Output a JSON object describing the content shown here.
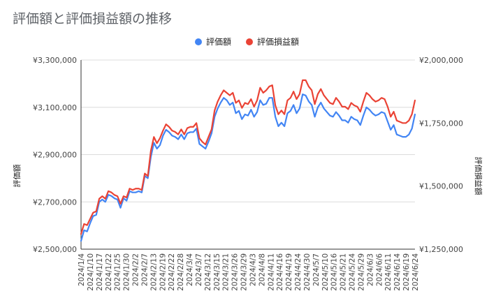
{
  "chart_data": {
    "type": "line",
    "title": "評価額と評価損益額の推移",
    "ylabel_left": "評価額",
    "ylabel_right": "評価損益額",
    "ylim_left": [
      2500000,
      3300000
    ],
    "ylim_right": [
      1250000,
      2000000
    ],
    "yticks_left": [
      "¥2,500,000",
      "¥2,700,000",
      "¥2,900,000",
      "¥3,100,000",
      "¥3,300,000"
    ],
    "yticks_right": [
      "¥1,250,000",
      "¥1,500,000",
      "¥1,750,000",
      "¥2,000,000"
    ],
    "x_tick_labels": [
      "2024/1/4",
      "2024/1/10",
      "2024/1/17",
      "2024/1/22",
      "2024/1/25",
      "2024/1/30",
      "2024/2/2",
      "2024/2/7",
      "2024/2/13",
      "2024/2/19",
      "2024/2/22",
      "2024/2/28",
      "2024/3/4",
      "2024/3/7",
      "2024/3/12",
      "2024/3/15",
      "2024/3/21",
      "2024/3/26",
      "2024/3/29",
      "2024/4/3",
      "2024/4/8",
      "2024/4/11",
      "2024/4/16",
      "2024/4/19",
      "2024/4/24",
      "2024/4/30",
      "2024/5/7",
      "2024/5/10",
      "2024/5/16",
      "2024/5/21",
      "2024/5/24",
      "2024/5/29",
      "2024/6/3",
      "2024/6/6",
      "2024/6/11",
      "2024/6/14",
      "2024/6/19",
      "2024/6/24"
    ],
    "legend_position": "top-center",
    "grid": true,
    "series": [
      {
        "name": "評価額",
        "axis": "left",
        "color": "#4285f4",
        "values": [
          2535000,
          2580000,
          2575000,
          2610000,
          2640000,
          2645000,
          2700000,
          2710000,
          2700000,
          2730000,
          2725000,
          2715000,
          2710000,
          2675000,
          2715000,
          2705000,
          2745000,
          2740000,
          2740000,
          2745000,
          2740000,
          2810000,
          2800000,
          2890000,
          2950000,
          2925000,
          2940000,
          2980000,
          3005000,
          2995000,
          2980000,
          2975000,
          2965000,
          2985000,
          2965000,
          2990000,
          2995000,
          2995000,
          3010000,
          2945000,
          2935000,
          2925000,
          2955000,
          2990000,
          3060000,
          3095000,
          3120000,
          3140000,
          3130000,
          3110000,
          3120000,
          3075000,
          3085000,
          3050000,
          3070000,
          3065000,
          3090000,
          3060000,
          3080000,
          3130000,
          3110000,
          3115000,
          3140000,
          3140000,
          3060000,
          3020000,
          3035000,
          3020000,
          3075000,
          3085000,
          3110000,
          3075000,
          3095000,
          3155000,
          3150000,
          3125000,
          3110000,
          3060000,
          3100000,
          3120000,
          3095000,
          3080000,
          3065000,
          3060000,
          3080000,
          3065000,
          3045000,
          3045000,
          3035000,
          3060000,
          3050000,
          3045000,
          3025000,
          3065000,
          3100000,
          3090000,
          3075000,
          3065000,
          3070000,
          3080000,
          3075000,
          3040000,
          3005000,
          3025000,
          2985000,
          2980000,
          2975000,
          2975000,
          2985000,
          3010000,
          3070000
        ]
      },
      {
        "name": "評価損益額",
        "axis": "right",
        "color": "#ea4335",
        "values": [
          1310000,
          1350000,
          1345000,
          1370000,
          1395000,
          1400000,
          1450000,
          1460000,
          1450000,
          1480000,
          1475000,
          1465000,
          1460000,
          1430000,
          1460000,
          1455000,
          1490000,
          1485000,
          1490000,
          1490000,
          1485000,
          1550000,
          1540000,
          1640000,
          1695000,
          1670000,
          1690000,
          1720000,
          1745000,
          1735000,
          1720000,
          1715000,
          1705000,
          1725000,
          1705000,
          1730000,
          1735000,
          1735000,
          1750000,
          1690000,
          1675000,
          1665000,
          1695000,
          1725000,
          1800000,
          1835000,
          1860000,
          1880000,
          1870000,
          1860000,
          1870000,
          1830000,
          1840000,
          1810000,
          1830000,
          1825000,
          1845000,
          1815000,
          1840000,
          1890000,
          1870000,
          1880000,
          1895000,
          1900000,
          1820000,
          1785000,
          1800000,
          1785000,
          1840000,
          1850000,
          1875000,
          1845000,
          1865000,
          1920000,
          1920000,
          1895000,
          1880000,
          1825000,
          1865000,
          1885000,
          1860000,
          1845000,
          1830000,
          1825000,
          1850000,
          1835000,
          1815000,
          1815000,
          1805000,
          1830000,
          1820000,
          1815000,
          1795000,
          1835000,
          1870000,
          1860000,
          1845000,
          1835000,
          1840000,
          1850000,
          1845000,
          1815000,
          1775000,
          1795000,
          1760000,
          1755000,
          1750000,
          1750000,
          1760000,
          1785000,
          1840000
        ]
      }
    ]
  }
}
